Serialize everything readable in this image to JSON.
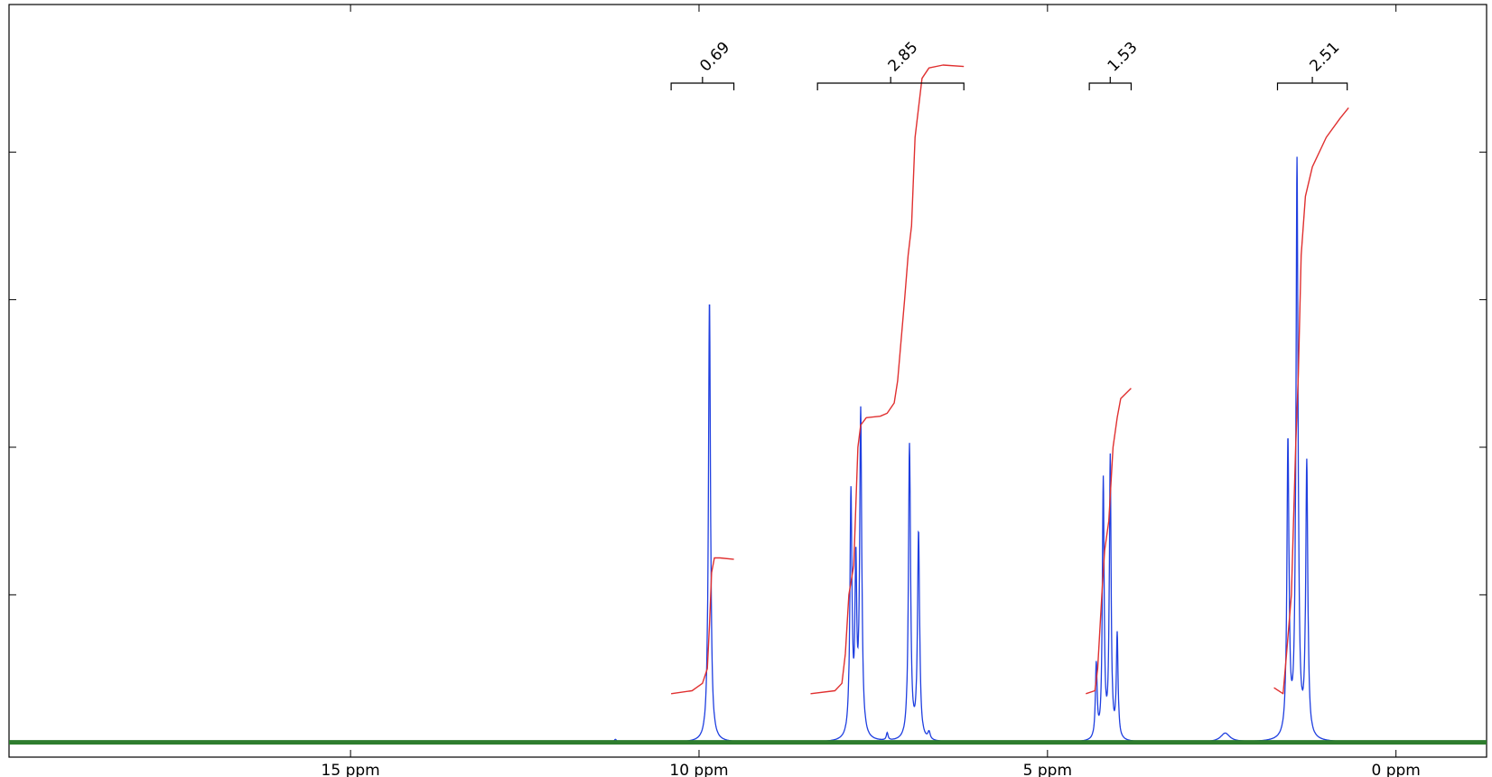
{
  "chart_data": {
    "type": "line",
    "title": "",
    "xlabel": "",
    "ylabel": "",
    "x_reversed": true,
    "xlim": [
      19.9,
      -1.3
    ],
    "ylim": [
      -0.01,
      0.5
    ],
    "x_ticks": [
      {
        "value": 15,
        "label": "15 ppm"
      },
      {
        "value": 10,
        "label": "10 ppm"
      },
      {
        "value": 5,
        "label": "5 ppm"
      },
      {
        "value": 0,
        "label": "0 ppm"
      }
    ],
    "y_ticks": [
      0,
      0.1,
      0.2,
      0.3,
      0.4
    ],
    "series": [
      {
        "role": "spectrum",
        "color": "#1f3fe0",
        "peaks": [
          {
            "ppm": 11.2,
            "height": 0.002,
            "width": 0.02
          },
          {
            "ppm": 9.85,
            "height": 0.3,
            "width": 0.018
          },
          {
            "ppm": 7.82,
            "height": 0.165,
            "width": 0.018
          },
          {
            "ppm": 7.75,
            "height": 0.11,
            "width": 0.015
          },
          {
            "ppm": 7.68,
            "height": 0.22,
            "width": 0.018
          },
          {
            "ppm": 7.3,
            "height": 0.005,
            "width": 0.015
          },
          {
            "ppm": 6.98,
            "height": 0.2,
            "width": 0.018
          },
          {
            "ppm": 6.85,
            "height": 0.14,
            "width": 0.018
          },
          {
            "ppm": 6.7,
            "height": 0.005,
            "width": 0.02
          },
          {
            "ppm": 4.3,
            "height": 0.05,
            "width": 0.015
          },
          {
            "ppm": 4.2,
            "height": 0.175,
            "width": 0.015
          },
          {
            "ppm": 4.1,
            "height": 0.19,
            "width": 0.015
          },
          {
            "ppm": 4.0,
            "height": 0.07,
            "width": 0.015
          },
          {
            "ppm": 2.45,
            "height": 0.006,
            "width": 0.08
          },
          {
            "ppm": 1.55,
            "height": 0.2,
            "width": 0.018
          },
          {
            "ppm": 1.42,
            "height": 0.39,
            "width": 0.018
          },
          {
            "ppm": 1.28,
            "height": 0.185,
            "width": 0.018
          }
        ]
      },
      {
        "role": "integral",
        "color": "#e03030",
        "segments": [
          {
            "x": [
              10.4,
              10.1,
              9.95,
              9.88,
              9.85,
              9.82,
              9.78,
              9.7,
              9.5
            ],
            "y": [
              0.033,
              0.035,
              0.04,
              0.05,
              0.08,
              0.115,
              0.125,
              0.125,
              0.124
            ]
          },
          {
            "x": [
              8.4,
              8.05,
              7.95,
              7.9,
              7.85,
              7.78,
              7.72,
              7.68,
              7.6,
              7.4,
              7.3,
              7.2,
              7.15,
              7.05,
              7.0,
              6.95,
              6.9,
              6.8,
              6.7,
              6.5,
              6.2
            ],
            "y": [
              0.033,
              0.035,
              0.04,
              0.06,
              0.1,
              0.12,
              0.2,
              0.215,
              0.22,
              0.221,
              0.223,
              0.23,
              0.245,
              0.3,
              0.33,
              0.35,
              0.41,
              0.45,
              0.457,
              0.459,
              0.458
            ]
          },
          {
            "x": [
              4.45,
              4.32,
              4.28,
              4.22,
              4.18,
              4.12,
              4.06,
              4.0,
              3.95,
              3.8
            ],
            "y": [
              0.033,
              0.035,
              0.05,
              0.1,
              0.13,
              0.15,
              0.2,
              0.22,
              0.233,
              0.24
            ]
          },
          {
            "x": [
              1.75,
              1.62,
              1.57,
              1.5,
              1.44,
              1.4,
              1.36,
              1.3,
              1.2,
              1.0,
              0.8,
              0.68
            ],
            "y": [
              0.037,
              0.033,
              0.06,
              0.1,
              0.2,
              0.25,
              0.33,
              0.37,
              0.39,
              0.41,
              0.423,
              0.43
            ]
          }
        ]
      },
      {
        "role": "baseline",
        "color": "#2e7d2e",
        "x": [
          19.9,
          -1.3
        ],
        "y": [
          0.0,
          0.0
        ]
      }
    ],
    "annotations": [
      {
        "label": "0.69",
        "x_range": [
          10.4,
          9.5
        ],
        "x_mid": 9.95
      },
      {
        "label": "2.85",
        "x_range": [
          8.3,
          6.2
        ],
        "x_mid": 7.25
      },
      {
        "label": "1.53",
        "x_range": [
          4.4,
          3.8
        ],
        "x_mid": 4.1
      },
      {
        "label": "2.51",
        "x_range": [
          1.7,
          0.7
        ],
        "x_mid": 1.2
      }
    ],
    "grid": false,
    "legend": "none"
  }
}
